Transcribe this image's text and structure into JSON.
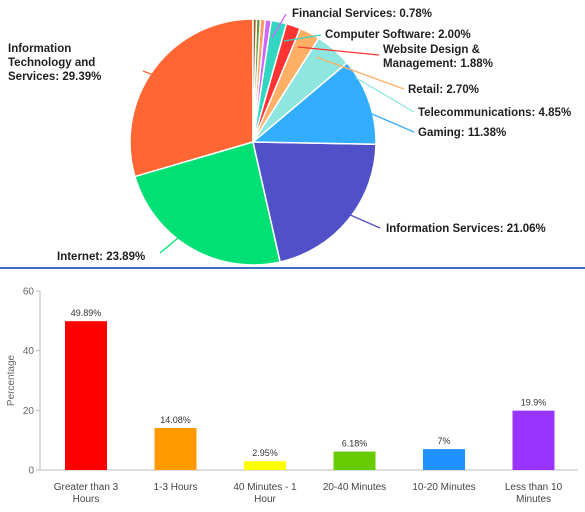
{
  "chart_data": [
    {
      "type": "pie",
      "slices": [
        {
          "label": "Information Technology and Services: 29.39%",
          "value": 29.39,
          "color": "#ff6633"
        },
        {
          "label": "Internet: 23.89%",
          "value": 23.89,
          "color": "#00e075"
        },
        {
          "label": "Information Services: 21.06%",
          "value": 21.06,
          "color": "#5050c8"
        },
        {
          "label": "Gaming: 11.38%",
          "value": 11.38,
          "color": "#33adff"
        },
        {
          "label": "Telecommunications: 4.85%",
          "value": 4.85,
          "color": "#8fe6e0"
        },
        {
          "label": "Retail: 2.70%",
          "value": 2.7,
          "color": "#ffb066"
        },
        {
          "label": "Website Design & Management: 1.88%",
          "value": 1.88,
          "color": "#ff3333"
        },
        {
          "label": "Computer Software: 2.00%",
          "value": 2.0,
          "color": "#33d6c0"
        },
        {
          "label": "Financial Services: 0.78%",
          "value": 0.78,
          "color": "#cc66ff"
        },
        {
          "label": "",
          "value": 0.63,
          "color": "#ff9966"
        },
        {
          "label": "",
          "value": 0.5,
          "color": "#669933"
        },
        {
          "label": "",
          "value": 0.45,
          "color": "#996633"
        }
      ]
    },
    {
      "type": "bar",
      "categories": [
        "Greater than 3 Hours",
        "1-3 Hours",
        "40 Minutes - 1 Hour",
        "20-40 Minutes",
        "10-20 Minutes",
        "Less than 10 Minutes"
      ],
      "values": [
        49.89,
        14.08,
        2.95,
        6.18,
        7,
        19.9
      ],
      "value_labels": [
        "49.89%",
        "14.08%",
        "2.95%",
        "6.18%",
        "7%",
        "19.9%"
      ],
      "colors": [
        "#ff0000",
        "#ff9900",
        "#ffff00",
        "#66cc00",
        "#1e90ff",
        "#9933ff"
      ],
      "ylabel": "Percentage",
      "ylim": [
        0,
        60
      ],
      "yticks": [
        "0",
        "20",
        "40",
        "60"
      ],
      "grid": false
    }
  ]
}
